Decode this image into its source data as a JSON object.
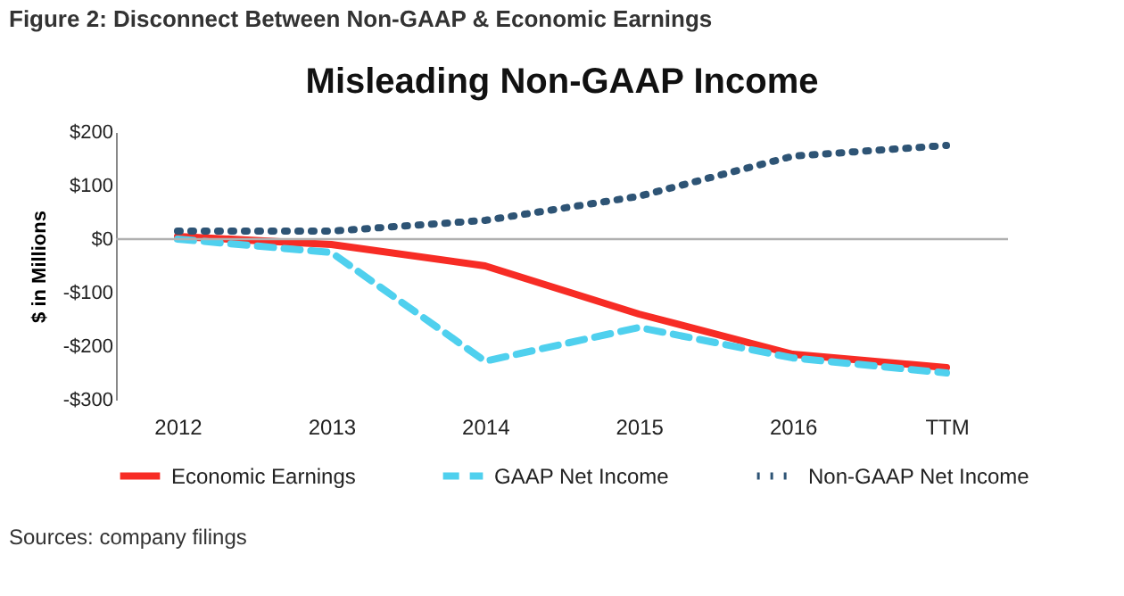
{
  "chart_data": {
    "type": "line",
    "title": "Misleading Non-GAAP Income",
    "subtitle": "Figure 2: Disconnect Between Non-GAAP & Economic Earnings",
    "ylabel": "$ in Millions",
    "categories": [
      "2012",
      "2013",
      "2014",
      "2015",
      "2016",
      "TTM"
    ],
    "series": [
      {
        "name": "Economic Earnings",
        "color": "#f72c25",
        "line_style": "solid",
        "values": [
          5,
          -10,
          -50,
          -140,
          -215,
          -240
        ]
      },
      {
        "name": "GAAP Net Income",
        "color": "#4fd0ee",
        "line_style": "dashed",
        "values": [
          0,
          -25,
          -228,
          -165,
          -222,
          -250
        ]
      },
      {
        "name": "Non-GAAP Net Income",
        "color": "#2e5475",
        "line_style": "dotted",
        "values": [
          15,
          15,
          35,
          80,
          155,
          175
        ]
      }
    ],
    "ylim": [
      -300,
      200
    ],
    "yticks": [
      {
        "value": -300,
        "label": "-$300"
      },
      {
        "value": -200,
        "label": "-$200"
      },
      {
        "value": -100,
        "label": "-$100"
      },
      {
        "value": 0,
        "label": "$0"
      },
      {
        "value": 100,
        "label": "$100"
      },
      {
        "value": 200,
        "label": "$200"
      }
    ],
    "ref_lines": [
      {
        "axis": "y",
        "value": 0,
        "color": "#b0b0b0"
      }
    ],
    "grid": false,
    "legend": "bottom",
    "marker": "none",
    "annotations": [
      "Sources: company filings"
    ]
  }
}
